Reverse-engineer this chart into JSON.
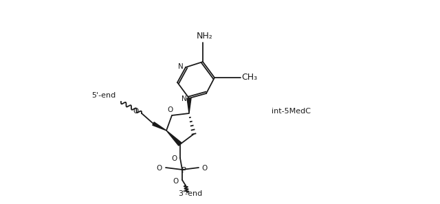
{
  "background_color": "#ffffff",
  "line_color": "#1a1a1a",
  "text_color": "#1a1a1a",
  "label_5end": "5'-end",
  "label_3end": "3'-end",
  "label_int": "int-5MedC",
  "label_NH2": "NH₂",
  "label_CH3": "CH₃",
  "font_size_atoms": 7.5,
  "font_size_annotation": 8,
  "lw": 1.3
}
